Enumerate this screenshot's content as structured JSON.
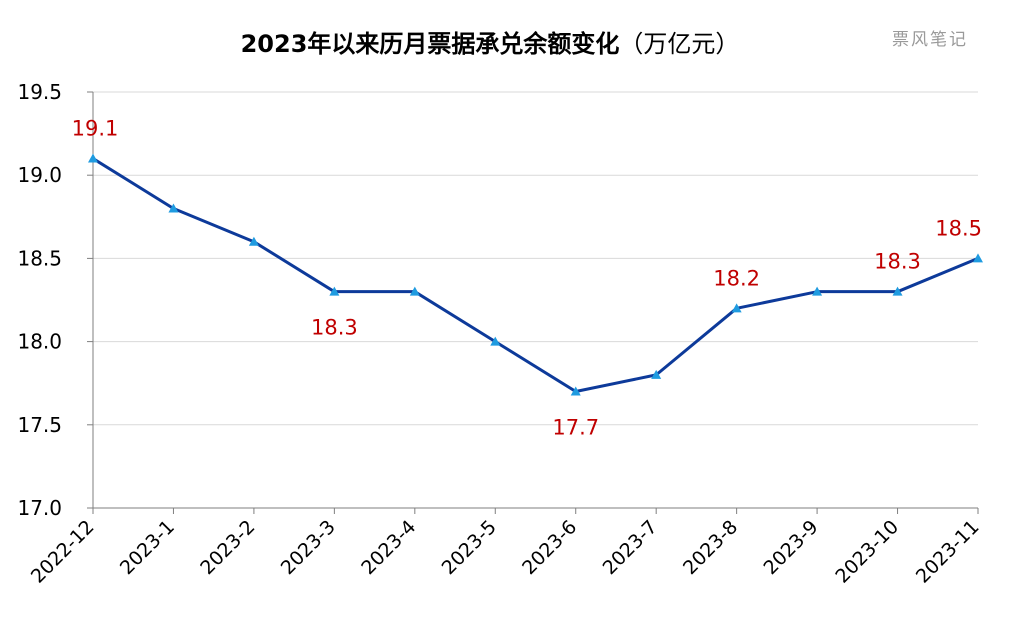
{
  "chart_data": {
    "type": "line",
    "title": "2023年以来历月票据承兑余额变化",
    "title_unit": "（万亿元）",
    "watermark": "票风笔记",
    "categories": [
      "2022-12",
      "2023-1",
      "2023-2",
      "2023-3",
      "2023-4",
      "2023-5",
      "2023-6",
      "2023-7",
      "2023-8",
      "2023-9",
      "2023-10",
      "2023-11"
    ],
    "series": [
      {
        "values": [
          19.1,
          18.8,
          18.6,
          18.3,
          18.3,
          18.0,
          17.7,
          17.8,
          18.2,
          18.3,
          18.3,
          18.5
        ],
        "color": "#0d3a9a",
        "marker": "triangle",
        "marker_color": "#1f9be0"
      }
    ],
    "ylim": [
      17.0,
      19.5
    ],
    "yticks": [
      "17.0",
      "17.5",
      "18.0",
      "18.5",
      "19.0",
      "19.5"
    ],
    "grid": true,
    "legend": "none",
    "data_labels": [
      {
        "index": 0,
        "text": "19.1",
        "position": "above"
      },
      {
        "index": 3,
        "text": "18.3",
        "position": "below"
      },
      {
        "index": 6,
        "text": "17.7",
        "position": "below"
      },
      {
        "index": 8,
        "text": "18.2",
        "position": "above"
      },
      {
        "index": 10,
        "text": "18.3",
        "position": "above"
      },
      {
        "index": 11,
        "text": "18.5",
        "position": "above"
      }
    ],
    "data_label_color": "#c00000"
  }
}
